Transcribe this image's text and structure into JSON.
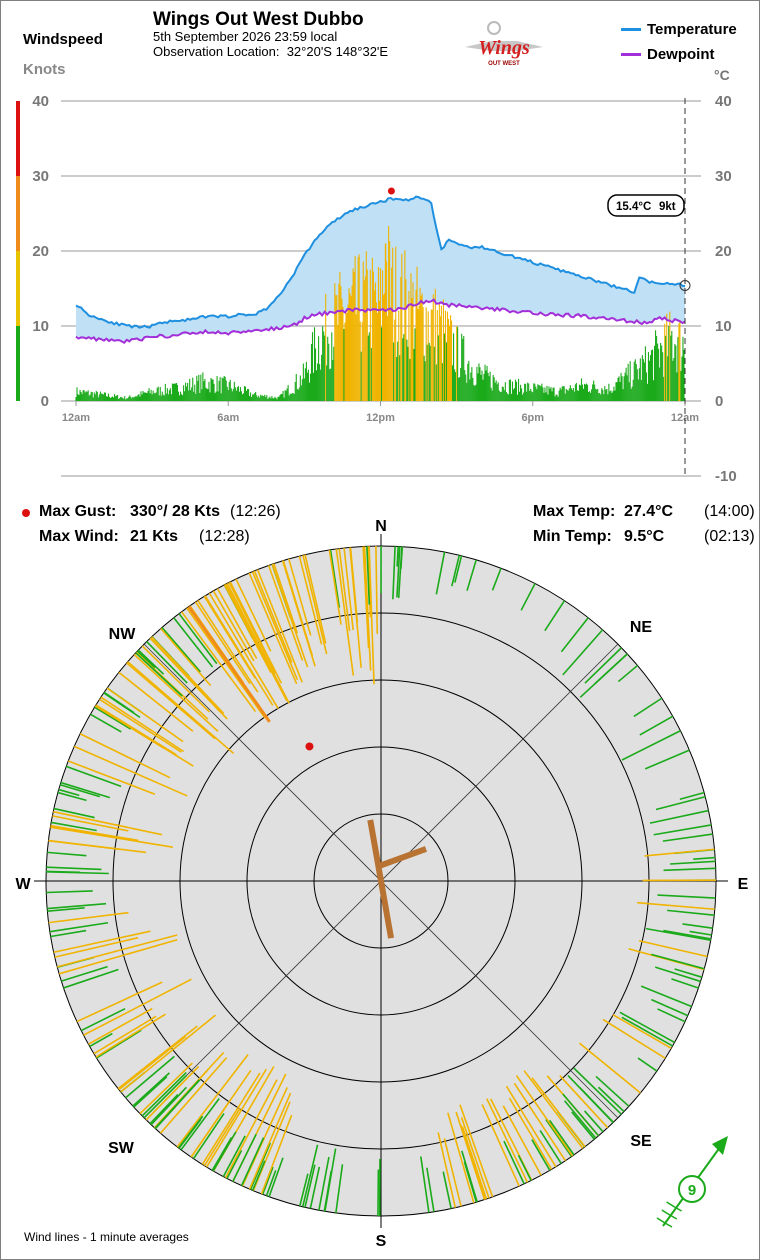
{
  "header": {
    "title": "Wings Out West Dubbo",
    "date_line": "5th September 2026  23:59 local",
    "location_label": "Observation Location:",
    "location_value": "32°20'S 148°32'E",
    "logo_text": "Wings",
    "logo_subtext": "OUT WEST"
  },
  "left_labels": {
    "windspeed": "Windspeed",
    "knots": "Knots"
  },
  "right_labels": {
    "celsius": "°C"
  },
  "legend": [
    {
      "name": "Temperature",
      "color": "#1f8fe0"
    },
    {
      "name": "Dewpoint",
      "color": "#a22fd8"
    }
  ],
  "colors": {
    "temp": "#1f8fe0",
    "temp_fill": "#bfe0f5",
    "dew": "#a22fd8",
    "wind_green": "#1aaa1a",
    "wind_amber": "#f0b400",
    "wind_orange": "#f08c1a",
    "max_red": "#dd1010",
    "grid": "#999999",
    "rose_bg": "#e0e0e0",
    "current_wind": "#b87333"
  },
  "chart_data": [
    {
      "type": "line",
      "title": "",
      "x_ticks": [
        "12am",
        "6am",
        "12pm",
        "6pm",
        "12am"
      ],
      "x_unit": "hours",
      "xlim": [
        0,
        24
      ],
      "left_axis": {
        "label": "Knots",
        "ticks": [
          0,
          10,
          20,
          30,
          40
        ],
        "ylim": [
          -10,
          40
        ],
        "color_bands": [
          {
            "from": 0,
            "to": 10,
            "color": "#1aaa1a"
          },
          {
            "from": 10,
            "to": 20,
            "color": "#e8c400"
          },
          {
            "from": 20,
            "to": 30,
            "color": "#f08c1a"
          },
          {
            "from": 30,
            "to": 40,
            "color": "#dd1010"
          }
        ]
      },
      "right_axis": {
        "label": "°C",
        "ticks": [
          40,
          30,
          20,
          10,
          0,
          -10
        ],
        "ylim": [
          -10,
          40
        ]
      },
      "series": [
        {
          "name": "Temperature",
          "unit": "°C",
          "x": [
            0,
            0.5,
            1,
            1.5,
            2,
            2.5,
            3,
            3.5,
            4,
            4.5,
            5,
            5.5,
            6,
            6.5,
            7,
            7.5,
            8,
            8.5,
            9,
            9.5,
            10,
            10.5,
            11,
            11.5,
            12,
            12.5,
            13,
            13.5,
            14,
            14.2,
            14.4,
            14.7,
            15,
            15.5,
            16,
            17,
            18,
            19,
            20,
            21,
            21.5,
            22,
            22.2,
            22.5,
            23,
            23.5,
            24
          ],
          "y": [
            12.9,
            11.5,
            10.9,
            10.4,
            10,
            9.8,
            10,
            10.5,
            10.8,
            10.8,
            11.2,
            11.3,
            11.3,
            11.5,
            11.5,
            12.3,
            14,
            16.5,
            19.4,
            21.8,
            23.5,
            24.7,
            25.6,
            26,
            26.6,
            27,
            26.8,
            27.2,
            26.5,
            23,
            20.2,
            21.5,
            21,
            20.5,
            20.5,
            19.5,
            18.5,
            17.5,
            16.5,
            15.5,
            15,
            14.5,
            16.5,
            16,
            15.5,
            15.7,
            15.4
          ]
        },
        {
          "name": "Dewpoint",
          "unit": "°C",
          "x": [
            0,
            1,
            2,
            3,
            4,
            5,
            6,
            7,
            8,
            8.5,
            9,
            9.5,
            10,
            11,
            12,
            13,
            14,
            14.5,
            15,
            16,
            17,
            18,
            19,
            20,
            21,
            22,
            22.5,
            23,
            24
          ],
          "y": [
            8.6,
            8.2,
            8,
            8.5,
            8.8,
            9.2,
            9.1,
            9.4,
            9.7,
            10,
            11,
            11.5,
            11.8,
            12.2,
            12,
            12.5,
            13.5,
            12.8,
            12.7,
            12.4,
            12.1,
            11.8,
            11.5,
            11.3,
            11,
            10.6,
            10.4,
            11,
            10.5
          ]
        },
        {
          "name": "Wind speed",
          "unit": "kt",
          "x": [
            0,
            1,
            2,
            3,
            4,
            5,
            6,
            7,
            8,
            9,
            9.5,
            10,
            10.5,
            11,
            11.5,
            12,
            12.2,
            12.5,
            13,
            13.5,
            14,
            14.5,
            15,
            16,
            17,
            18,
            19,
            20,
            21,
            22,
            22.5,
            23,
            23.5,
            24
          ],
          "y": [
            1.5,
            1,
            0.5,
            1.5,
            2,
            3,
            2.5,
            1,
            0.5,
            4,
            9,
            12,
            14,
            15,
            16,
            15,
            21,
            17,
            16,
            14,
            13,
            11,
            8,
            4,
            2.5,
            2,
            1.5,
            2.5,
            2,
            4.5,
            6,
            8,
            10,
            9
          ]
        }
      ],
      "current": {
        "temperature": "15.4°C",
        "wind": "9kt"
      },
      "max_gust_marker": {
        "x": 12.43,
        "y": 28
      }
    },
    {
      "type": "polar",
      "title": "",
      "directions": [
        "N",
        "NE",
        "E",
        "SE",
        "S",
        "SW",
        "W",
        "NW"
      ],
      "rings": [
        10,
        20,
        30,
        40,
        50
      ],
      "bins": [
        {
          "from": 0,
          "to": 30,
          "speed_range": [
            3,
            8
          ],
          "density": 12
        },
        {
          "from": 30,
          "to": 80,
          "speed_range": [
            3,
            10
          ],
          "density": 14
        },
        {
          "from": 80,
          "to": 135,
          "speed_range": [
            3,
            12
          ],
          "density": 34
        },
        {
          "from": 135,
          "to": 175,
          "speed_range": [
            4,
            15
          ],
          "density": 38
        },
        {
          "from": 175,
          "to": 200,
          "speed_range": [
            4,
            10
          ],
          "density": 12
        },
        {
          "from": 200,
          "to": 240,
          "speed_range": [
            4,
            19
          ],
          "density": 48
        },
        {
          "from": 240,
          "to": 275,
          "speed_range": [
            3,
            19
          ],
          "density": 22
        },
        {
          "from": 275,
          "to": 315,
          "speed_range": [
            3,
            21
          ],
          "density": 38
        },
        {
          "from": 315,
          "to": 360,
          "speed_range": [
            8,
            21
          ],
          "density": 55
        }
      ],
      "max_gust_dir": 330,
      "max_gust_kts": 28,
      "current": {
        "dir": 350,
        "speed": 9,
        "gust_barb": 70
      }
    }
  ],
  "stats": {
    "max_gust_label": "Max Gust:",
    "max_gust_value": "330°/  28 Kts",
    "max_gust_time": "(12:26)",
    "max_wind_label": "Max Wind:",
    "max_wind_value": "21 Kts",
    "max_wind_time": "(12:28)",
    "max_temp_label": "Max Temp:",
    "max_temp_value": "27.4°C",
    "max_temp_time": "(14:00)",
    "min_temp_label": "Min Temp:",
    "min_temp_value": "9.5°C",
    "min_temp_time": "(02:13)"
  },
  "footer": {
    "wind_note": "Wind lines - 1 minute averages",
    "arrow_badge": "9"
  }
}
